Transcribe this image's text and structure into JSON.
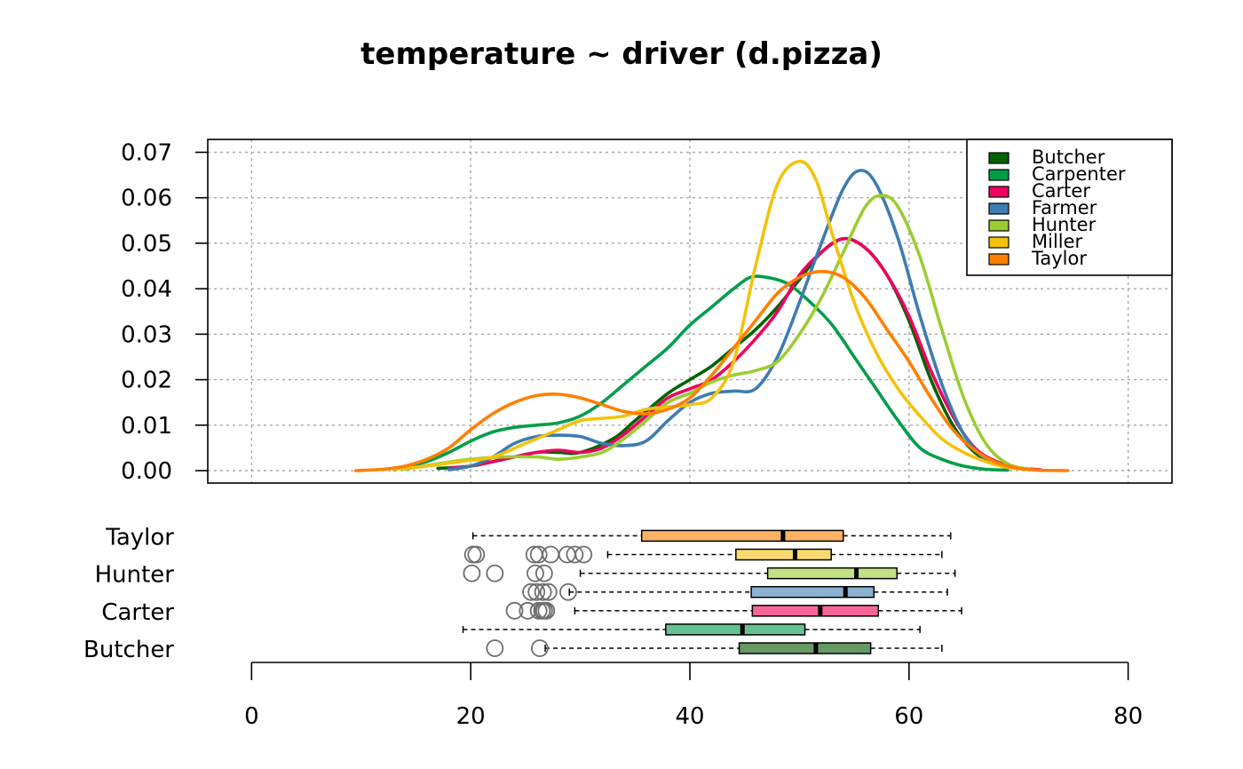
{
  "chart_data": [
    {
      "type": "line",
      "title": "temperature ~ driver (d.pizza)",
      "xlim": [
        -4,
        84
      ],
      "ylim": [
        0,
        0.07
      ],
      "x_ticks": [
        "0",
        "20",
        "40",
        "60",
        "80"
      ],
      "y_ticks": [
        "0.00",
        "0.01",
        "0.02",
        "0.03",
        "0.04",
        "0.05",
        "0.06",
        "0.07"
      ],
      "x_tick_values": [
        0,
        20,
        40,
        60,
        80
      ],
      "y_tick_values": [
        0,
        0.01,
        0.02,
        0.03,
        0.04,
        0.05,
        0.06,
        0.07
      ],
      "grid": true,
      "legend_position": "top-right",
      "series": [
        {
          "name": "Butcher",
          "color": "#006400",
          "x": [
            17,
            20,
            23,
            26,
            28,
            30,
            33,
            35,
            38,
            40,
            42,
            44,
            46,
            48,
            50,
            52,
            54,
            56,
            58,
            60,
            62,
            64,
            66,
            68,
            70,
            72
          ],
          "y": [
            0.0005,
            0.001,
            0.0025,
            0.004,
            0.004,
            0.004,
            0.007,
            0.011,
            0.017,
            0.02,
            0.023,
            0.027,
            0.031,
            0.036,
            0.042,
            0.048,
            0.051,
            0.049,
            0.043,
            0.033,
            0.02,
            0.01,
            0.004,
            0.0015,
            0.0005,
            0.0001
          ]
        },
        {
          "name": "Carpenter",
          "color": "#009E49",
          "x": [
            13,
            16,
            18,
            20,
            22,
            24,
            26,
            28,
            30,
            32,
            34,
            36,
            38,
            40,
            42,
            44,
            45.5,
            47,
            49,
            51,
            53,
            55,
            57,
            59,
            61,
            63,
            65,
            67,
            69
          ],
          "y": [
            0.0002,
            0.002,
            0.004,
            0.0065,
            0.0085,
            0.0095,
            0.01,
            0.0105,
            0.012,
            0.015,
            0.019,
            0.023,
            0.027,
            0.032,
            0.036,
            0.04,
            0.0425,
            0.0425,
            0.041,
            0.037,
            0.032,
            0.025,
            0.018,
            0.011,
            0.005,
            0.0025,
            0.001,
            0.0003,
            0.0001
          ]
        },
        {
          "name": "Carter",
          "color": "#F0005F",
          "x": [
            18,
            20,
            22,
            24,
            26,
            28,
            30,
            32,
            34,
            36,
            38,
            40,
            42,
            44,
            46,
            48,
            50,
            52,
            54,
            56,
            58,
            60,
            62,
            64,
            66,
            68,
            70,
            72
          ],
          "y": [
            0.0005,
            0.001,
            0.002,
            0.003,
            0.004,
            0.0045,
            0.004,
            0.005,
            0.008,
            0.012,
            0.016,
            0.018,
            0.02,
            0.024,
            0.029,
            0.035,
            0.043,
            0.048,
            0.051,
            0.049,
            0.043,
            0.034,
            0.022,
            0.012,
            0.005,
            0.002,
            0.0006,
            0.0002
          ]
        },
        {
          "name": "Farmer",
          "color": "#3E7CB1",
          "x": [
            18,
            20,
            22,
            24,
            26,
            28,
            30,
            32,
            34,
            36,
            38,
            40,
            42,
            44,
            46,
            48,
            50,
            52,
            54,
            55.5,
            57,
            59,
            61,
            63,
            65,
            67,
            69
          ],
          "y": [
            0.0002,
            0.001,
            0.003,
            0.006,
            0.0075,
            0.0078,
            0.0075,
            0.006,
            0.0055,
            0.0065,
            0.011,
            0.015,
            0.017,
            0.0175,
            0.018,
            0.025,
            0.037,
            0.05,
            0.062,
            0.066,
            0.063,
            0.051,
            0.034,
            0.019,
            0.008,
            0.0025,
            0.0006
          ]
        },
        {
          "name": "Hunter",
          "color": "#9ACD32",
          "x": [
            14,
            17,
            20,
            23,
            26,
            28,
            30,
            32,
            34,
            36,
            38,
            40,
            42,
            44,
            46,
            48,
            50,
            52,
            54,
            56,
            57.5,
            59,
            61,
            63,
            65,
            67,
            69,
            71
          ],
          "y": [
            0.0003,
            0.0015,
            0.0025,
            0.003,
            0.003,
            0.0025,
            0.003,
            0.004,
            0.007,
            0.011,
            0.015,
            0.017,
            0.0195,
            0.021,
            0.022,
            0.024,
            0.03,
            0.038,
            0.048,
            0.058,
            0.0605,
            0.058,
            0.047,
            0.031,
            0.016,
            0.006,
            0.0015,
            0.0003
          ]
        },
        {
          "name": "Miller",
          "color": "#F4C20D",
          "x": [
            13,
            16,
            19,
            22,
            25,
            28,
            30,
            32,
            34,
            36,
            38,
            40,
            42,
            44,
            46,
            48,
            50,
            51.5,
            53,
            55,
            57,
            59,
            61,
            63,
            65,
            67,
            69,
            71
          ],
          "y": [
            0.0003,
            0.001,
            0.002,
            0.003,
            0.006,
            0.009,
            0.011,
            0.0115,
            0.012,
            0.0135,
            0.014,
            0.0145,
            0.016,
            0.024,
            0.045,
            0.063,
            0.068,
            0.064,
            0.052,
            0.037,
            0.026,
            0.018,
            0.012,
            0.007,
            0.004,
            0.002,
            0.0007,
            0.0002
          ]
        },
        {
          "name": "Taylor",
          "color": "#FF7F00",
          "x": [
            9.5,
            12,
            14,
            16,
            18,
            20,
            22,
            24,
            26,
            28,
            30,
            32,
            34,
            36,
            38,
            40,
            42,
            44,
            46,
            48,
            50,
            52,
            54,
            56,
            58,
            60,
            62,
            64,
            66,
            68,
            70,
            72,
            74.5
          ],
          "y": [
            0,
            0.0003,
            0.001,
            0.0025,
            0.005,
            0.009,
            0.0125,
            0.015,
            0.0165,
            0.0168,
            0.016,
            0.0145,
            0.013,
            0.0125,
            0.0135,
            0.016,
            0.021,
            0.027,
            0.033,
            0.039,
            0.0425,
            0.0438,
            0.0425,
            0.038,
            0.031,
            0.024,
            0.016,
            0.009,
            0.0045,
            0.0018,
            0.0005,
            0.0001,
            0
          ]
        }
      ]
    },
    {
      "type": "box",
      "categories": [
        "Butcher",
        "Carpenter",
        "Carter",
        "Farmer",
        "Hunter",
        "Miller",
        "Taylor"
      ],
      "category_labels_shown": [
        "Taylor",
        "Hunter",
        "Carter",
        "Butcher"
      ],
      "xlim": [
        -4,
        84
      ],
      "x_ticks": [
        "0",
        "20",
        "40",
        "60",
        "80"
      ],
      "x_tick_values": [
        0,
        20,
        40,
        60,
        80
      ],
      "boxes": [
        {
          "name": "Butcher",
          "color": "#669966",
          "min": 26.8,
          "q1": 44.5,
          "median": 51.5,
          "q3": 56.5,
          "max": 63,
          "outliers": [
            22.2,
            26.3
          ]
        },
        {
          "name": "Carpenter",
          "color": "#66C291",
          "min": 19.3,
          "q1": 37.8,
          "median": 44.8,
          "q3": 50.5,
          "max": 61,
          "outliers": []
        },
        {
          "name": "Carter",
          "color": "#F76699",
          "min": 29.5,
          "q1": 45.7,
          "median": 51.9,
          "q3": 57.2,
          "max": 64.8,
          "outliers": [
            24,
            25.2,
            26.2,
            26.5,
            26.7,
            26.9
          ]
        },
        {
          "name": "Farmer",
          "color": "#8BB0D0",
          "min": 29,
          "q1": 45.6,
          "median": 54.2,
          "q3": 56.8,
          "max": 63.5,
          "outliers": [
            25.5,
            26,
            26.6,
            27.1,
            28.9
          ]
        },
        {
          "name": "Hunter",
          "color": "#C2E184",
          "min": 30,
          "q1": 47.1,
          "median": 55.2,
          "q3": 58.9,
          "max": 64.2,
          "outliers": [
            20.1,
            22.2,
            25.9,
            26.7
          ]
        },
        {
          "name": "Miller",
          "color": "#F8DA6E",
          "min": 32.5,
          "q1": 44.2,
          "median": 49.6,
          "q3": 52.9,
          "max": 63,
          "outliers": [
            20.2,
            20.5,
            25.8,
            26.2,
            27.3,
            28.8,
            29.5,
            30.3
          ]
        },
        {
          "name": "Taylor",
          "color": "#FFB266",
          "min": 20.2,
          "q1": 35.6,
          "median": 48.5,
          "q3": 54,
          "max": 63.8,
          "outliers": []
        }
      ]
    }
  ]
}
